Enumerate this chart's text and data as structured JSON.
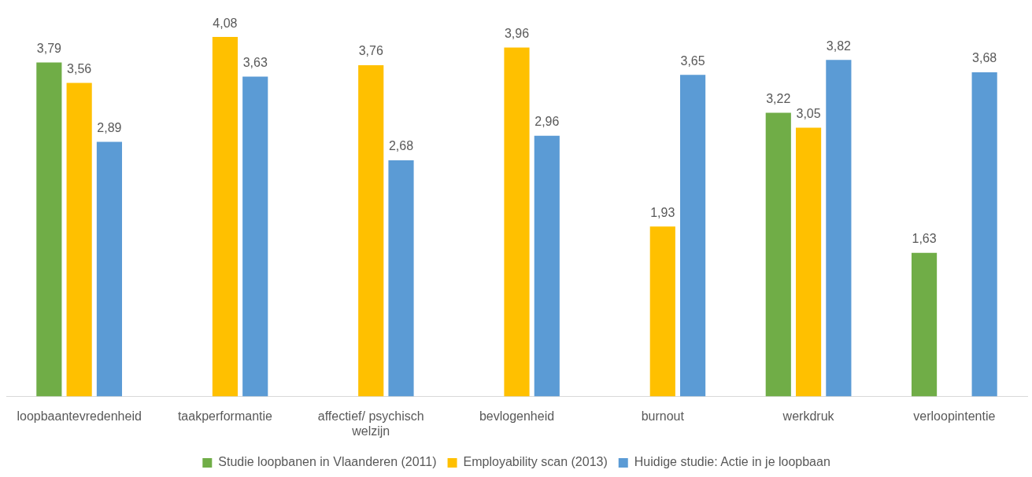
{
  "chart_data": {
    "type": "bar",
    "categories": [
      "loopbaantevredenheid",
      "taakperformantie",
      "affectief/ psychisch welzijn",
      "bevlogenheid",
      "burnout",
      "werkdruk",
      "verloopintentie"
    ],
    "series": [
      {
        "name": "Studie loopbanen in Vlaanderen (2011)",
        "color": "#70ad47",
        "values": [
          3.79,
          null,
          null,
          null,
          null,
          3.22,
          1.63
        ],
        "value_labels": [
          "3,79",
          null,
          null,
          null,
          null,
          "3,22",
          "1,63"
        ]
      },
      {
        "name": "Employability scan (2013)",
        "color": "#ffc000",
        "values": [
          3.56,
          4.08,
          3.76,
          3.96,
          1.93,
          3.05,
          null
        ],
        "value_labels": [
          "3,56",
          "4,08",
          "3,76",
          "3,96",
          "1,93",
          "3,05",
          null
        ]
      },
      {
        "name": "Huidige studie: Actie in je loopbaan",
        "color": "#5b9bd5",
        "values": [
          2.89,
          3.63,
          2.68,
          2.96,
          3.65,
          3.82,
          3.68
        ],
        "value_labels": [
          "2,89",
          "3,63",
          "2,68",
          "2,96",
          "3,65",
          "3,82",
          "3,68"
        ]
      }
    ],
    "tick_labels": "x",
    "legend": "bottom"
  }
}
